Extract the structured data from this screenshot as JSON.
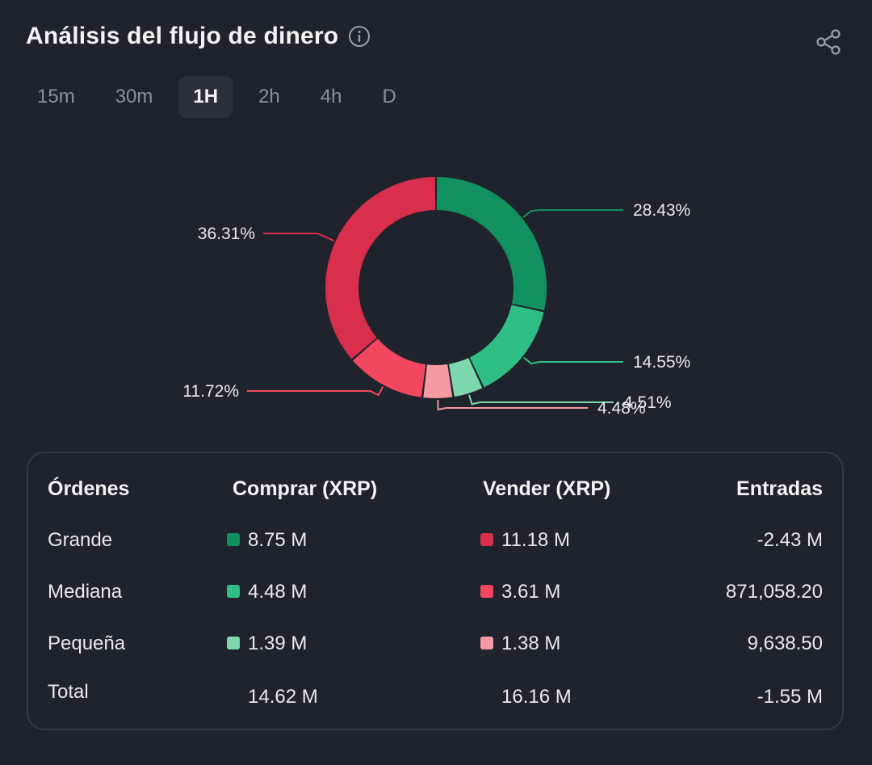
{
  "header": {
    "title": "Análisis del flujo de dinero"
  },
  "icons": {
    "info": "info-icon",
    "share": "share-icon"
  },
  "tabs": [
    {
      "label": "15m",
      "active": false
    },
    {
      "label": "30m",
      "active": false
    },
    {
      "label": "1H",
      "active": true
    },
    {
      "label": "2h",
      "active": false
    },
    {
      "label": "4h",
      "active": false
    },
    {
      "label": "D",
      "active": false
    }
  ],
  "colors": {
    "buy_large": "#11915f",
    "buy_medium": "#2fbf86",
    "buy_small": "#7dd8ad",
    "sell_large": "#d92e4c",
    "sell_medium": "#f2475f",
    "sell_small": "#f59aa2"
  },
  "chart_data": {
    "type": "pie",
    "slices": [
      {
        "label": "28.43%",
        "value": 28.43,
        "color": "#11915f"
      },
      {
        "label": "14.55%",
        "value": 14.55,
        "color": "#2fbf86"
      },
      {
        "label": "4.51%",
        "value": 4.51,
        "color": "#7dd8ad"
      },
      {
        "label": "4.48%",
        "value": 4.48,
        "color": "#f59aa2"
      },
      {
        "label": "11.72%",
        "value": 11.72,
        "color": "#f2475f"
      },
      {
        "label": "36.31%",
        "value": 36.31,
        "color": "#d92e4c"
      }
    ]
  },
  "table": {
    "headers": {
      "orders": "Órdenes",
      "buy": "Comprar (XRP)",
      "sell": "Vender (XRP)",
      "inflow": "Entradas"
    },
    "rows": [
      {
        "label": "Grande",
        "buy": "8.75 M",
        "sell": "11.18 M",
        "inflow": "-2.43 M",
        "buy_color": "#11915f",
        "sell_color": "#d92e4c"
      },
      {
        "label": "Mediana",
        "buy": "4.48 M",
        "sell": "3.61 M",
        "inflow": "871,058.20",
        "buy_color": "#2fbf86",
        "sell_color": "#f2475f"
      },
      {
        "label": "Pequeña",
        "buy": "1.39 M",
        "sell": "1.38 M",
        "inflow": "9,638.50",
        "buy_color": "#7dd8ad",
        "sell_color": "#f59aa2"
      }
    ],
    "total": {
      "label": "Total",
      "buy": "14.62 M",
      "sell": "16.16 M",
      "inflow": "-1.55 M"
    }
  }
}
